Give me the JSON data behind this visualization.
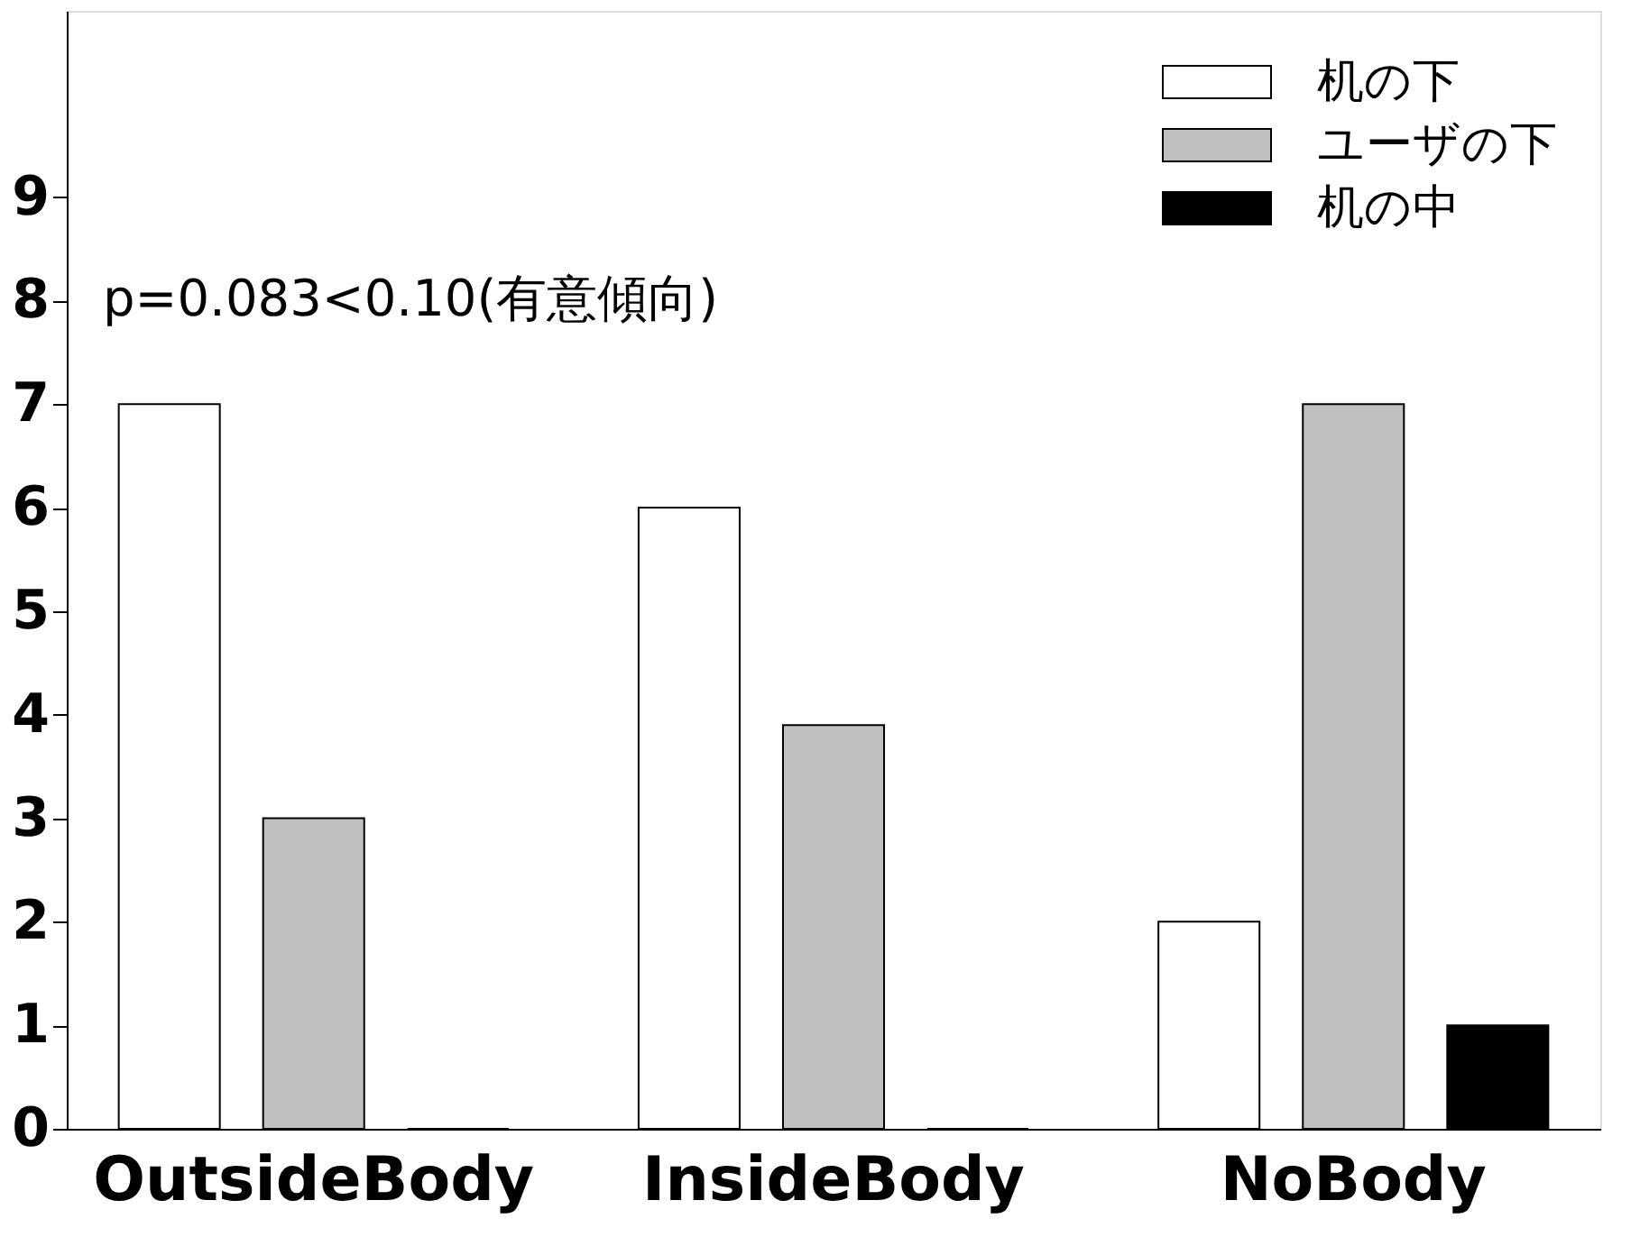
{
  "chart_data": {
    "type": "bar",
    "categories": [
      "OutsideBody",
      "InsideBody",
      "NoBody"
    ],
    "series": [
      {
        "name": "机の下",
        "color": "#ffffff",
        "values": [
          7,
          6,
          2
        ]
      },
      {
        "name": "ユーザの下",
        "color": "#c0c0c0",
        "values": [
          3,
          3.9,
          7
        ]
      },
      {
        "name": "机の中",
        "color": "#000000",
        "values": [
          0,
          0,
          1
        ]
      }
    ],
    "ylim": [
      0,
      10.8
    ],
    "yticks": [
      0,
      1,
      2,
      3,
      4,
      5,
      6,
      7,
      8,
      9
    ],
    "grid": false,
    "legend": "top right",
    "annotations": [
      "p=0.083<0.10(有意傾向)"
    ]
  }
}
